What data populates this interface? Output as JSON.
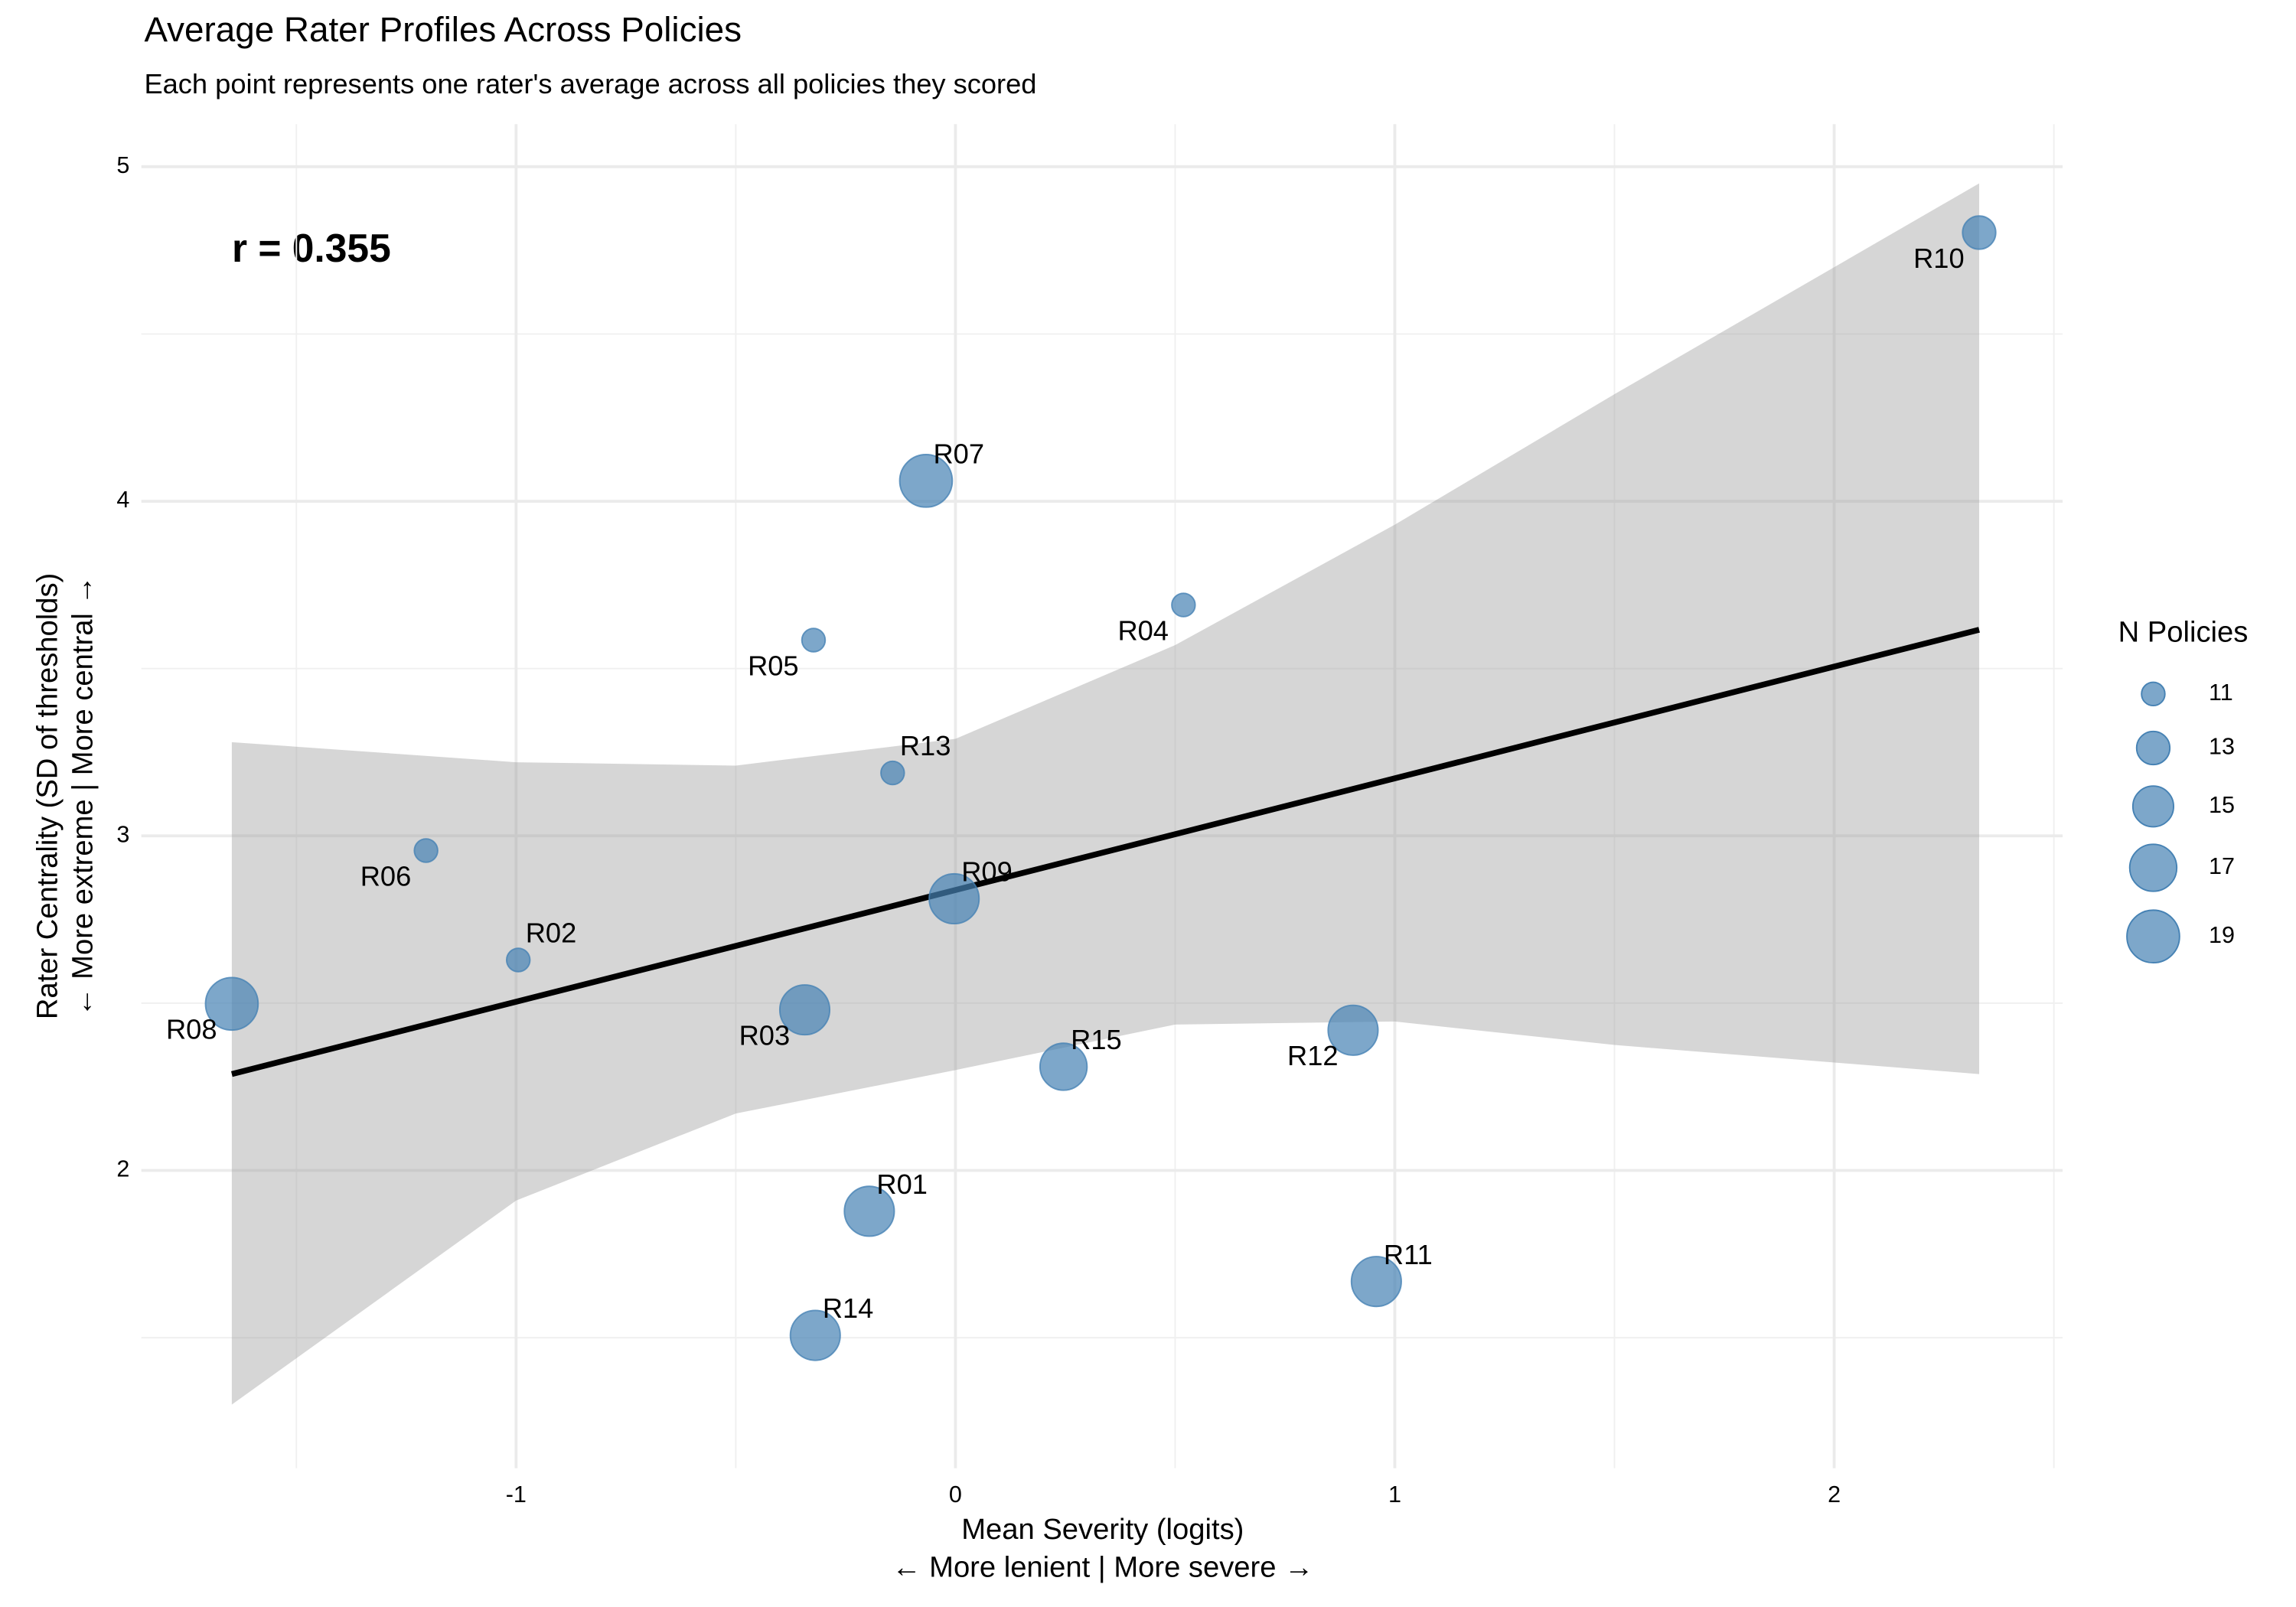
{
  "chart_data": {
    "type": "scatter",
    "title": "Average Rater Profiles Across Policies",
    "subtitle": "Each point represents one rater's average across all policies they scored",
    "x_label": [
      "Mean Severity (logits)",
      "← More lenient | More severe →"
    ],
    "y_label": [
      "Rater Centrality (SD of thresholds)",
      "← More extreme | More central →"
    ],
    "annotation": "r = 0.355",
    "color": "#4682b4",
    "labels": [
      "R01",
      "R02",
      "R03",
      "R04",
      "R05",
      "R06",
      "R07",
      "R08",
      "R09",
      "R10",
      "R11",
      "R12",
      "R13",
      "R14",
      "R15"
    ],
    "x": [
      -0.196,
      -0.995,
      -0.343,
      0.519,
      -0.323,
      -1.205,
      -0.067,
      -1.647,
      -0.003,
      2.33,
      0.958,
      0.905,
      -0.143,
      -0.319,
      0.246
    ],
    "y": [
      1.878,
      2.629,
      2.48,
      3.69,
      3.585,
      2.956,
      4.061,
      2.498,
      2.812,
      4.803,
      1.668,
      2.419,
      3.188,
      1.507,
      2.31
    ],
    "size": [
      18,
      11,
      18,
      11,
      11,
      11,
      19,
      19,
      18,
      13,
      18,
      18,
      11,
      18,
      17
    ],
    "fit": {
      "x": [
        -1.647,
        2.33
      ],
      "y": [
        2.288,
        3.616
      ]
    },
    "band": {
      "x": [
        -1.647,
        -1,
        -0.5,
        0,
        0.5,
        1,
        1.5,
        2.33
      ],
      "upper": [
        3.28,
        3.22,
        3.21,
        3.29,
        3.57,
        3.93,
        4.32,
        4.95
      ],
      "lower": [
        1.3,
        1.91,
        2.17,
        2.3,
        2.436,
        2.445,
        2.375,
        2.288
      ]
    },
    "xlim": [
      -1.853,
      2.52
    ],
    "ylim": [
      1.11,
      5.127
    ],
    "xticks": [
      -1,
      0,
      1,
      2
    ],
    "yticks": [
      2,
      3,
      4,
      5
    ],
    "xminor": [
      -1.5,
      -0.5,
      0.5,
      1.5,
      2.5
    ],
    "yminor": [
      1.5,
      2.5,
      3.5,
      4.5
    ],
    "grid": true,
    "legend": {
      "title": "N Policies",
      "sizes": [
        11,
        13,
        15,
        17,
        19
      ],
      "position": "right"
    }
  }
}
